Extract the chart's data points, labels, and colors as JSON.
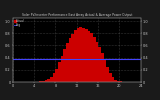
{
  "title": "Solar PV/Inverter Performance East Array Actual & Average Power Output",
  "bg_color": "#1a1a1a",
  "plot_bg_color": "#000000",
  "fill_color": "#cc0000",
  "line_color": "#cc0000",
  "avg_line_color": "#4444ff",
  "avg_value": 0.38,
  "y_max": 1.05,
  "y_min": 0.0,
  "x_min": 0,
  "x_max": 24,
  "x_points": [
    0,
    0.5,
    1,
    1.5,
    2,
    2.5,
    3,
    3.5,
    4,
    4.5,
    5,
    5.5,
    6,
    6.5,
    7,
    7.5,
    8,
    8.5,
    9,
    9.5,
    10,
    10.5,
    11,
    11.5,
    12,
    12.5,
    13,
    13.5,
    14,
    14.5,
    15,
    15.5,
    16,
    16.5,
    17,
    17.5,
    18,
    18.5,
    19,
    19.5,
    20,
    20.5,
    21,
    21.5,
    22,
    22.5,
    23,
    23.5,
    24
  ],
  "y_points": [
    0,
    0,
    0,
    0,
    0,
    0,
    0,
    0,
    0,
    0,
    0.01,
    0.01,
    0.03,
    0.05,
    0.09,
    0.15,
    0.22,
    0.32,
    0.43,
    0.54,
    0.64,
    0.72,
    0.79,
    0.85,
    0.88,
    0.9,
    0.89,
    0.87,
    0.84,
    0.8,
    0.74,
    0.66,
    0.57,
    0.47,
    0.36,
    0.25,
    0.15,
    0.08,
    0.03,
    0.01,
    0.01,
    0,
    0,
    0,
    0,
    0,
    0,
    0,
    0
  ],
  "grid_color": "#888888",
  "tick_label_color": "#cccccc",
  "legend_actual_label": "Actual",
  "legend_avg_label": "Avg",
  "legend_actual_color": "#cc0000",
  "legend_avg_color": "#4444ff",
  "ytick_labels": [
    "0",
    "0.2",
    "0.4",
    "0.6",
    "0.8",
    "1.0"
  ],
  "ytick_values": [
    0,
    0.2,
    0.4,
    0.6,
    0.8,
    1.0
  ],
  "xtick_values": [
    0,
    4,
    8,
    12,
    16,
    20,
    24
  ]
}
